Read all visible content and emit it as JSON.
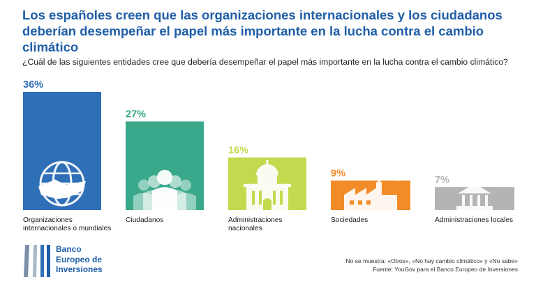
{
  "title": "Los españoles creen que las organizaciones internacionales y los ciudadanos deberían desempeñar el papel más importante en la lucha contra el cambio climático",
  "subtitle": "¿Cuál de las siguientes entidades cree que debería desempeñar el papel más importante en la lucha contra el cambio climático?",
  "chart_data": {
    "type": "bar",
    "categories": [
      "Organizaciones internacionales o mundiales",
      "Ciudadanos",
      "Administraciones nacionales",
      "Sociedades",
      "Administraciones locales"
    ],
    "category_lines": [
      [
        "Organizaciones",
        "internacionales o mundiales"
      ],
      [
        "Ciudadanos"
      ],
      [
        "Administraciones",
        "nacionales"
      ],
      [
        "Sociedades"
      ],
      [
        "Administraciones locales"
      ]
    ],
    "values": [
      36,
      27,
      16,
      9,
      7
    ],
    "value_labels": [
      "36%",
      "27%",
      "16%",
      "9%",
      "7%"
    ],
    "colors": [
      "#2f6fb7",
      "#3aa98b",
      "#c4d94e",
      "#f28c28",
      "#b4b4b4"
    ],
    "icons": [
      "globe-handshake-icon",
      "people-group-icon",
      "government-building-icon",
      "factory-icon",
      "bank-columns-icon"
    ],
    "ylim": [
      0,
      36
    ],
    "grid": false,
    "legend": "none"
  },
  "logo": {
    "lines": [
      "Banco",
      "Europeo de",
      "Inversiones"
    ],
    "color": "#1f5ea8"
  },
  "footnote": {
    "line1": "No se muestra: «Otros», «No hay cambio climático» y «No sabe»",
    "line2": "Fuente: YouGov para el Banco Europeo de Inversiones"
  }
}
